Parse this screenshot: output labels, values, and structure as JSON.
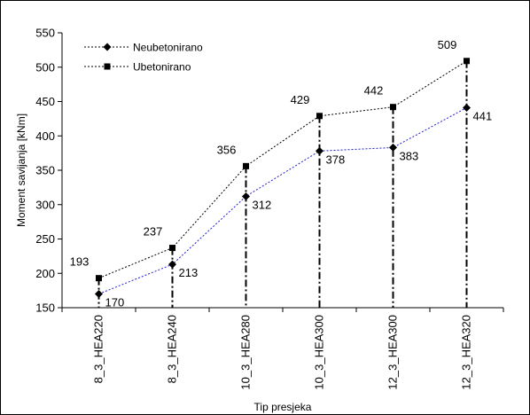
{
  "chart_data": {
    "type": "line",
    "categories": [
      "8_3_HEA220",
      "8_3_HEA240",
      "10_3_HEA280",
      "10_3_HEA300",
      "12_3_HEA300",
      "12_3_HEA320"
    ],
    "series": [
      {
        "name": "Neubetonirano",
        "values": [
          170,
          213,
          312,
          378,
          383,
          441
        ],
        "marker": "diamond",
        "color": "#1f1fd0"
      },
      {
        "name": "Ubetonirano",
        "values": [
          193,
          237,
          356,
          429,
          442,
          509
        ],
        "marker": "square",
        "color": "#000000"
      }
    ],
    "data_labels": {
      "Neubetonirano": [
        "170",
        "213",
        "312",
        "378",
        "383",
        "441"
      ],
      "Ubetonirano": [
        "193",
        "237",
        "356",
        "429",
        "442",
        "509"
      ]
    },
    "title": "",
    "xlabel": "Tip presjeka",
    "ylabel": "Moment savijanja [kNm]",
    "ylim": [
      150,
      550
    ],
    "yticks": [
      150,
      200,
      250,
      300,
      350,
      400,
      450,
      500,
      550
    ],
    "grid": false,
    "legend_position": "top-left",
    "drop_lines": true
  }
}
